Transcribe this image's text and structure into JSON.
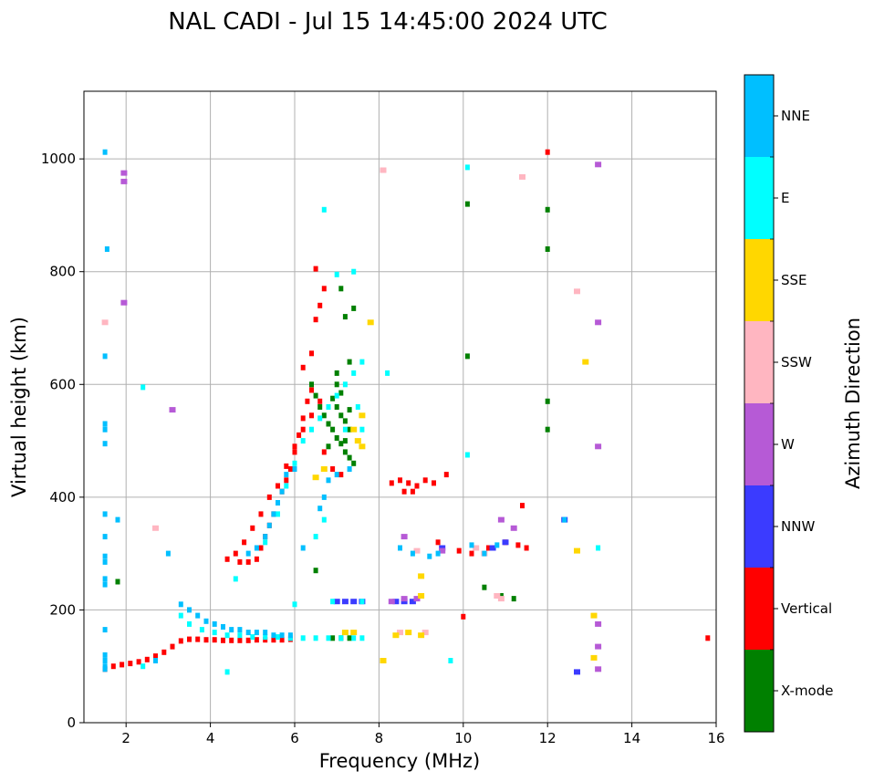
{
  "chart_data": {
    "type": "scatter",
    "title": "NAL CADI - Jul 15 14:45:00 2024 UTC",
    "xlabel": "Frequency (MHz)",
    "ylabel": "Virtual height (km)",
    "xlim": [
      1,
      16
    ],
    "ylim": [
      0,
      1120
    ],
    "xticks": [
      2,
      4,
      6,
      8,
      10,
      12,
      14,
      16
    ],
    "yticks": [
      0,
      200,
      400,
      600,
      800,
      1000
    ],
    "grid": true,
    "colorbar": {
      "title": "Azimuth Direction",
      "categories": [
        {
          "name": "X-mode",
          "color": "#008000"
        },
        {
          "name": "Vertical",
          "color": "#ff0000"
        },
        {
          "name": "NNW",
          "color": "#3b3bff"
        },
        {
          "name": "W",
          "color": "#b65ad6"
        },
        {
          "name": "SSW",
          "color": "#ffb6c1"
        },
        {
          "name": "SSE",
          "color": "#ffd700"
        },
        {
          "name": "E",
          "color": "#00ffff"
        },
        {
          "name": "NNE",
          "color": "#00bfff"
        }
      ]
    },
    "series": [
      {
        "name": "X-mode",
        "points": [
          [
            6.4,
            600
          ],
          [
            6.5,
            580
          ],
          [
            6.6,
            560
          ],
          [
            6.7,
            545
          ],
          [
            6.8,
            530
          ],
          [
            6.9,
            520
          ],
          [
            7.0,
            505
          ],
          [
            7.1,
            495
          ],
          [
            7.2,
            480
          ],
          [
            7.3,
            470
          ],
          [
            7.4,
            460
          ],
          [
            7.0,
            560
          ],
          [
            7.1,
            545
          ],
          [
            7.2,
            535
          ],
          [
            7.3,
            520
          ],
          [
            7.0,
            600
          ],
          [
            7.1,
            585
          ],
          [
            6.9,
            575
          ],
          [
            7.2,
            500
          ],
          [
            6.8,
            490
          ],
          [
            7.3,
            555
          ],
          [
            6.5,
            270
          ],
          [
            6.9,
            150
          ],
          [
            7.1,
            150
          ],
          [
            7.3,
            150
          ],
          [
            10.1,
            920
          ],
          [
            12.0,
            910
          ],
          [
            12.0,
            840
          ],
          [
            12.0,
            570
          ],
          [
            12.0,
            520
          ],
          [
            10.1,
            650
          ],
          [
            10.5,
            240
          ],
          [
            10.9,
            225
          ],
          [
            11.2,
            220
          ],
          [
            7.0,
            620
          ],
          [
            7.3,
            640
          ],
          [
            7.4,
            735
          ],
          [
            7.2,
            720
          ],
          [
            7.1,
            770
          ],
          [
            1.8,
            250
          ]
        ]
      },
      {
        "name": "Vertical",
        "points": [
          [
            1.5,
            95
          ],
          [
            1.7,
            100
          ],
          [
            1.9,
            103
          ],
          [
            2.1,
            105
          ],
          [
            2.3,
            108
          ],
          [
            2.5,
            112
          ],
          [
            2.7,
            118
          ],
          [
            2.9,
            125
          ],
          [
            3.1,
            135
          ],
          [
            3.3,
            145
          ],
          [
            3.5,
            148
          ],
          [
            3.7,
            148
          ],
          [
            3.9,
            147
          ],
          [
            4.1,
            147
          ],
          [
            4.3,
            146
          ],
          [
            4.5,
            146
          ],
          [
            4.7,
            146
          ],
          [
            4.9,
            146
          ],
          [
            5.1,
            147
          ],
          [
            5.3,
            147
          ],
          [
            5.5,
            147
          ],
          [
            5.7,
            147
          ],
          [
            5.9,
            148
          ],
          [
            4.7,
            285
          ],
          [
            4.9,
            285
          ],
          [
            5.1,
            290
          ],
          [
            5.2,
            310
          ],
          [
            5.3,
            330
          ],
          [
            5.4,
            350
          ],
          [
            5.5,
            370
          ],
          [
            5.6,
            390
          ],
          [
            5.7,
            410
          ],
          [
            5.8,
            430
          ],
          [
            5.9,
            450
          ],
          [
            6.0,
            480
          ],
          [
            6.1,
            510
          ],
          [
            6.2,
            540
          ],
          [
            6.3,
            570
          ],
          [
            6.4,
            590
          ],
          [
            6.2,
            630
          ],
          [
            6.4,
            655
          ],
          [
            6.5,
            715
          ],
          [
            6.6,
            740
          ],
          [
            6.7,
            770
          ],
          [
            6.5,
            805
          ],
          [
            4.4,
            290
          ],
          [
            4.6,
            300
          ],
          [
            4.8,
            320
          ],
          [
            5.0,
            345
          ],
          [
            5.2,
            370
          ],
          [
            5.4,
            400
          ],
          [
            5.6,
            420
          ],
          [
            5.8,
            455
          ],
          [
            6.0,
            490
          ],
          [
            6.2,
            520
          ],
          [
            6.4,
            545
          ],
          [
            6.6,
            570
          ],
          [
            6.8,
            560
          ],
          [
            6.9,
            450
          ],
          [
            7.1,
            440
          ],
          [
            6.7,
            480
          ],
          [
            8.5,
            430
          ],
          [
            8.7,
            425
          ],
          [
            8.9,
            420
          ],
          [
            9.1,
            430
          ],
          [
            9.3,
            425
          ],
          [
            9.6,
            440
          ],
          [
            8.6,
            410
          ],
          [
            9.9,
            305
          ],
          [
            10.2,
            300
          ],
          [
            10.6,
            310
          ],
          [
            11.0,
            320
          ],
          [
            11.3,
            315
          ],
          [
            11.5,
            310
          ],
          [
            11.4,
            385
          ],
          [
            12.0,
            1012
          ],
          [
            15.8,
            150
          ],
          [
            10.0,
            188
          ],
          [
            9.4,
            320
          ],
          [
            8.3,
            425
          ],
          [
            8.8,
            410
          ]
        ]
      },
      {
        "name": "NNW",
        "points": [
          [
            7.0,
            215
          ],
          [
            7.2,
            215
          ],
          [
            7.4,
            215
          ],
          [
            7.6,
            215
          ],
          [
            8.4,
            215
          ],
          [
            8.6,
            215
          ],
          [
            8.8,
            215
          ],
          [
            9.5,
            310
          ],
          [
            10.7,
            310
          ],
          [
            11.0,
            320
          ],
          [
            12.7,
            90
          ],
          [
            12.4,
            360
          ]
        ]
      },
      {
        "name": "W",
        "points": [
          [
            8.3,
            215
          ],
          [
            8.6,
            220
          ],
          [
            8.9,
            220
          ],
          [
            9.5,
            305
          ],
          [
            8.6,
            330
          ],
          [
            10.9,
            360
          ],
          [
            11.2,
            345
          ],
          [
            13.2,
            990
          ],
          [
            13.2,
            710
          ],
          [
            13.2,
            490
          ],
          [
            13.2,
            175
          ],
          [
            13.2,
            135
          ],
          [
            13.2,
            95
          ],
          [
            1.95,
            975
          ],
          [
            1.95,
            960
          ],
          [
            3.1,
            555
          ],
          [
            1.95,
            745
          ]
        ]
      },
      {
        "name": "SSW",
        "points": [
          [
            8.5,
            160
          ],
          [
            9.1,
            160
          ],
          [
            10.3,
            310
          ],
          [
            10.5,
            300
          ],
          [
            10.8,
            225
          ],
          [
            10.9,
            220
          ],
          [
            12.7,
            765
          ],
          [
            11.4,
            968
          ],
          [
            8.1,
            980
          ],
          [
            1.5,
            710
          ],
          [
            2.7,
            345
          ],
          [
            8.9,
            305
          ]
        ]
      },
      {
        "name": "SSE",
        "points": [
          [
            7.4,
            520
          ],
          [
            7.5,
            500
          ],
          [
            7.6,
            490
          ],
          [
            7.2,
            160
          ],
          [
            7.4,
            160
          ],
          [
            8.4,
            155
          ],
          [
            8.7,
            160
          ],
          [
            9.0,
            155
          ],
          [
            12.7,
            305
          ],
          [
            13.1,
            190
          ],
          [
            13.1,
            115
          ],
          [
            12.9,
            640
          ],
          [
            9.0,
            260
          ],
          [
            7.6,
            545
          ],
          [
            6.7,
            450
          ],
          [
            6.5,
            435
          ],
          [
            9.0,
            225
          ],
          [
            8.1,
            110
          ],
          [
            7.8,
            710
          ]
        ]
      },
      {
        "name": "E",
        "points": [
          [
            3.5,
            175
          ],
          [
            3.8,
            165
          ],
          [
            4.1,
            160
          ],
          [
            4.4,
            155
          ],
          [
            4.7,
            155
          ],
          [
            5.0,
            152
          ],
          [
            5.3,
            152
          ],
          [
            5.6,
            152
          ],
          [
            5.9,
            150
          ],
          [
            6.2,
            150
          ],
          [
            6.5,
            150
          ],
          [
            6.8,
            150
          ],
          [
            7.1,
            150
          ],
          [
            7.4,
            150
          ],
          [
            7.6,
            150
          ],
          [
            6.7,
            910
          ],
          [
            7.4,
            800
          ],
          [
            10.1,
            985
          ],
          [
            8.2,
            620
          ],
          [
            2.4,
            595
          ],
          [
            2.4,
            100
          ],
          [
            5.3,
            320
          ],
          [
            5.6,
            370
          ],
          [
            5.8,
            420
          ],
          [
            6.0,
            460
          ],
          [
            6.2,
            500
          ],
          [
            6.4,
            520
          ],
          [
            6.6,
            540
          ],
          [
            6.8,
            560
          ],
          [
            7.0,
            580
          ],
          [
            7.2,
            600
          ],
          [
            7.4,
            620
          ],
          [
            7.6,
            520
          ],
          [
            7.2,
            520
          ],
          [
            7.5,
            560
          ],
          [
            6.9,
            215
          ],
          [
            7.6,
            215
          ],
          [
            10.1,
            475
          ],
          [
            13.2,
            310
          ],
          [
            9.7,
            110
          ],
          [
            4.4,
            90
          ],
          [
            4.6,
            255
          ],
          [
            6.0,
            210
          ],
          [
            6.5,
            330
          ],
          [
            6.7,
            360
          ],
          [
            3.3,
            190
          ],
          [
            7.6,
            640
          ],
          [
            7.0,
            795
          ]
        ]
      },
      {
        "name": "NNE",
        "points": [
          [
            1.5,
            1012
          ],
          [
            1.55,
            840
          ],
          [
            1.5,
            530
          ],
          [
            1.5,
            520
          ],
          [
            1.5,
            495
          ],
          [
            1.5,
            370
          ],
          [
            1.5,
            330
          ],
          [
            1.5,
            295
          ],
          [
            1.5,
            285
          ],
          [
            1.5,
            255
          ],
          [
            1.5,
            245
          ],
          [
            1.5,
            165
          ],
          [
            1.5,
            120
          ],
          [
            1.5,
            110
          ],
          [
            1.5,
            100
          ],
          [
            1.5,
            95
          ],
          [
            1.8,
            360
          ],
          [
            1.5,
            650
          ],
          [
            3.0,
            300
          ],
          [
            3.3,
            210
          ],
          [
            3.5,
            200
          ],
          [
            3.7,
            190
          ],
          [
            3.9,
            180
          ],
          [
            4.1,
            175
          ],
          [
            4.3,
            170
          ],
          [
            4.5,
            165
          ],
          [
            4.7,
            165
          ],
          [
            4.9,
            160
          ],
          [
            5.1,
            160
          ],
          [
            5.3,
            160
          ],
          [
            5.5,
            155
          ],
          [
            5.7,
            155
          ],
          [
            5.9,
            155
          ],
          [
            4.9,
            300
          ],
          [
            5.1,
            310
          ],
          [
            5.3,
            330
          ],
          [
            5.4,
            350
          ],
          [
            5.5,
            370
          ],
          [
            5.6,
            390
          ],
          [
            5.7,
            410
          ],
          [
            5.8,
            440
          ],
          [
            6.0,
            450
          ],
          [
            6.2,
            310
          ],
          [
            6.6,
            380
          ],
          [
            6.7,
            400
          ],
          [
            6.8,
            430
          ],
          [
            7.0,
            440
          ],
          [
            8.5,
            310
          ],
          [
            8.8,
            300
          ],
          [
            9.2,
            295
          ],
          [
            9.4,
            300
          ],
          [
            10.2,
            315
          ],
          [
            10.5,
            300
          ],
          [
            10.8,
            315
          ],
          [
            7.3,
            450
          ],
          [
            12.4,
            360
          ],
          [
            2.7,
            110
          ]
        ]
      }
    ]
  }
}
